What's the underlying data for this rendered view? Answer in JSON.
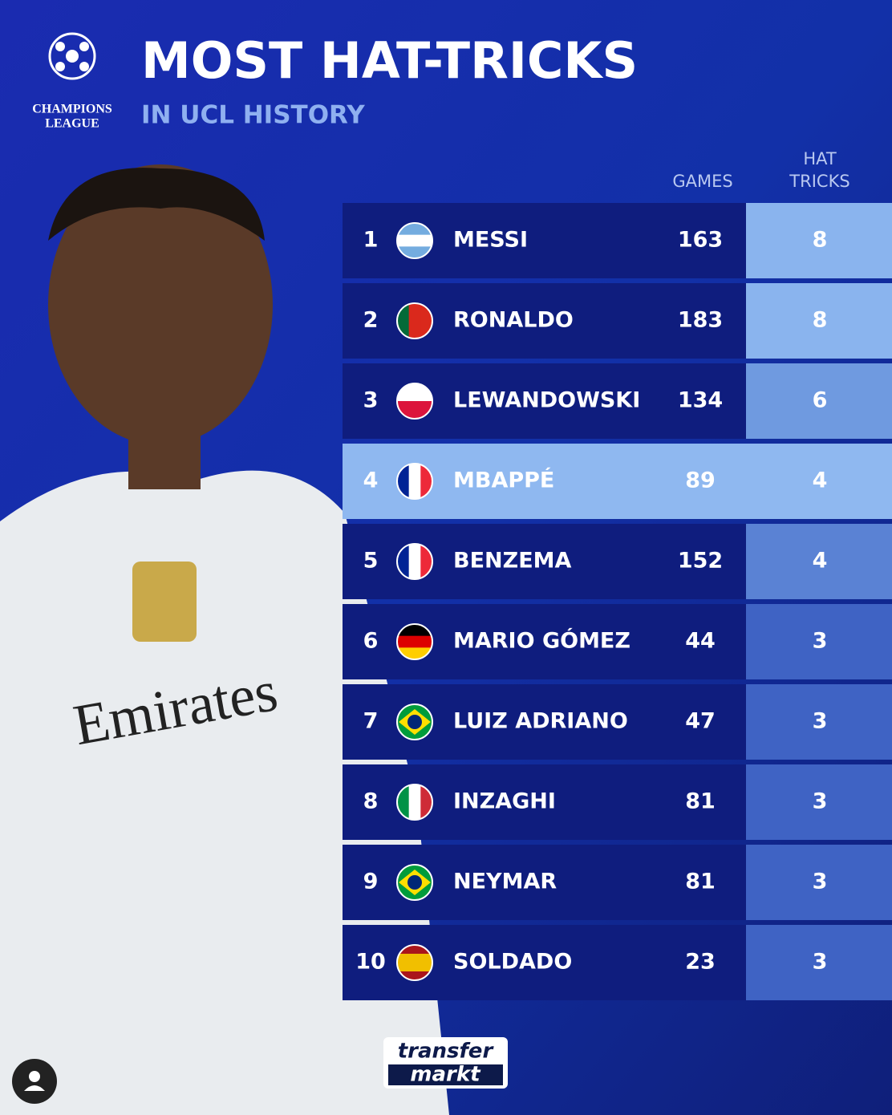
{
  "header": {
    "logo": [
      "CHAMPIONS",
      "LEAGUE"
    ],
    "title": "MOST HAT-TRICKS",
    "subtitle": "IN UCL HISTORY"
  },
  "table": {
    "columns": {
      "games": "GAMES",
      "hat_tricks": [
        "HAT",
        "TRICKS"
      ]
    },
    "rows": [
      {
        "rank": 1,
        "name": "MESSI",
        "games": 163,
        "hat_tricks": 8
      },
      {
        "rank": 2,
        "name": "RONALDO",
        "games": 183,
        "hat_tricks": 8
      },
      {
        "rank": 3,
        "name": "LEWANDOWSKI",
        "games": 134,
        "hat_tricks": 6
      },
      {
        "rank": 4,
        "name": "MBAPPÉ",
        "games": 89,
        "hat_tricks": 4
      },
      {
        "rank": 5,
        "name": "BENZEMA",
        "games": 152,
        "hat_tricks": 4
      },
      {
        "rank": 6,
        "name": "MARIO GÓMEZ",
        "games": 44,
        "hat_tricks": 3
      },
      {
        "rank": 7,
        "name": "LUIZ ADRIANO",
        "games": 47,
        "hat_tricks": 3
      },
      {
        "rank": 8,
        "name": "INZAGHI",
        "games": 81,
        "hat_tricks": 3
      },
      {
        "rank": 9,
        "name": "NEYMAR",
        "games": 81,
        "hat_tricks": 3
      },
      {
        "rank": 10,
        "name": "SOLDADO",
        "games": 23,
        "hat_tricks": 3
      }
    ]
  },
  "footer": {
    "brand": [
      "transfer",
      "markt"
    ]
  }
}
